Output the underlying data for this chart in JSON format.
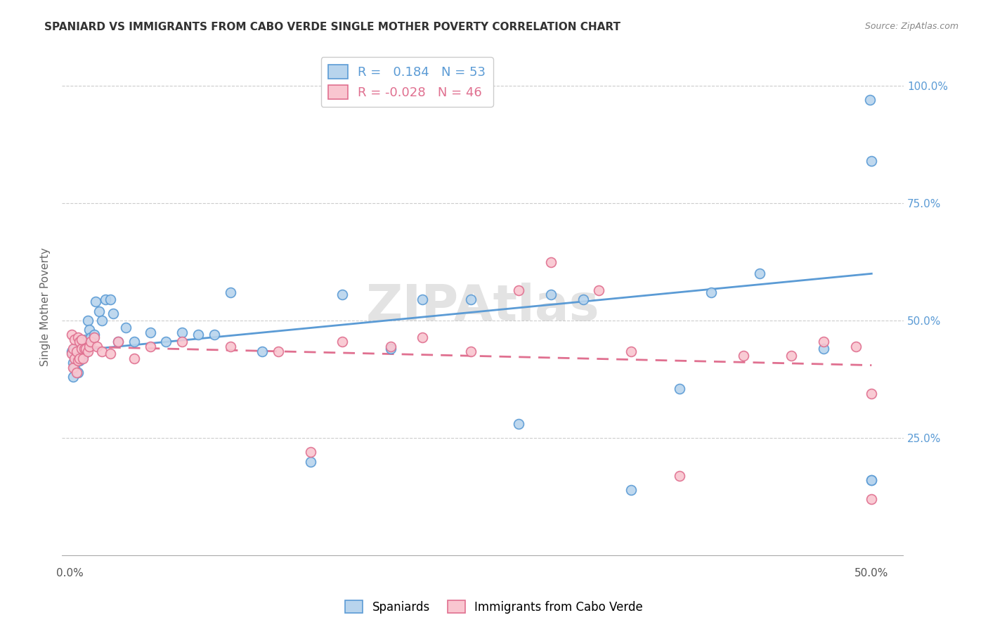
{
  "title": "SPANIARD VS IMMIGRANTS FROM CABO VERDE SINGLE MOTHER POVERTY CORRELATION CHART",
  "source": "Source: ZipAtlas.com",
  "ylabel": "Single Mother Poverty",
  "xlim": [
    -0.005,
    0.52
  ],
  "ylim": [
    -0.02,
    1.08
  ],
  "r_blue": 0.184,
  "n_blue": 53,
  "r_pink": -0.028,
  "n_pink": 46,
  "blue_fill": "#b8d4ed",
  "blue_edge": "#5b9bd5",
  "pink_fill": "#f9c6d0",
  "pink_edge": "#e07090",
  "blue_line_color": "#5b9bd5",
  "pink_line_color": "#e07090",
  "legend_label_blue": "Spaniards",
  "legend_label_pink": "Immigrants from Cabo Verde",
  "spaniards_x": [
    0.001,
    0.002,
    0.002,
    0.003,
    0.003,
    0.004,
    0.005,
    0.005,
    0.006,
    0.006,
    0.007,
    0.007,
    0.008,
    0.009,
    0.01,
    0.01,
    0.011,
    0.012,
    0.013,
    0.015,
    0.016,
    0.018,
    0.02,
    0.022,
    0.025,
    0.027,
    0.03,
    0.035,
    0.04,
    0.05,
    0.06,
    0.07,
    0.08,
    0.09,
    0.1,
    0.12,
    0.15,
    0.17,
    0.2,
    0.22,
    0.25,
    0.28,
    0.3,
    0.32,
    0.35,
    0.38,
    0.4,
    0.43,
    0.47,
    0.499,
    0.5,
    0.5,
    0.5
  ],
  "spaniards_y": [
    0.435,
    0.41,
    0.38,
    0.44,
    0.4,
    0.435,
    0.43,
    0.39,
    0.45,
    0.415,
    0.44,
    0.42,
    0.455,
    0.43,
    0.46,
    0.44,
    0.5,
    0.48,
    0.465,
    0.47,
    0.54,
    0.52,
    0.5,
    0.545,
    0.545,
    0.515,
    0.455,
    0.485,
    0.455,
    0.475,
    0.455,
    0.475,
    0.47,
    0.47,
    0.56,
    0.435,
    0.2,
    0.555,
    0.44,
    0.545,
    0.545,
    0.28,
    0.555,
    0.545,
    0.14,
    0.355,
    0.56,
    0.6,
    0.44,
    0.97,
    0.84,
    0.16,
    0.16
  ],
  "cabo_x": [
    0.001,
    0.001,
    0.002,
    0.002,
    0.003,
    0.003,
    0.004,
    0.004,
    0.005,
    0.005,
    0.006,
    0.006,
    0.007,
    0.007,
    0.008,
    0.009,
    0.01,
    0.011,
    0.012,
    0.013,
    0.015,
    0.017,
    0.02,
    0.025,
    0.03,
    0.04,
    0.05,
    0.07,
    0.1,
    0.13,
    0.15,
    0.17,
    0.2,
    0.22,
    0.25,
    0.28,
    0.3,
    0.33,
    0.35,
    0.38,
    0.42,
    0.45,
    0.47,
    0.49,
    0.5,
    0.5
  ],
  "cabo_y": [
    0.47,
    0.43,
    0.44,
    0.4,
    0.46,
    0.42,
    0.435,
    0.39,
    0.465,
    0.415,
    0.455,
    0.42,
    0.44,
    0.46,
    0.42,
    0.44,
    0.44,
    0.435,
    0.445,
    0.455,
    0.465,
    0.445,
    0.435,
    0.43,
    0.455,
    0.42,
    0.445,
    0.455,
    0.445,
    0.435,
    0.22,
    0.455,
    0.445,
    0.465,
    0.435,
    0.565,
    0.625,
    0.565,
    0.435,
    0.17,
    0.425,
    0.425,
    0.455,
    0.445,
    0.345,
    0.12
  ],
  "blue_line_x0": 0.0,
  "blue_line_x1": 0.5,
  "blue_line_y0": 0.435,
  "blue_line_y1": 0.6,
  "pink_line_x0": 0.0,
  "pink_line_x1": 0.5,
  "pink_line_y0": 0.445,
  "pink_line_y1": 0.405
}
